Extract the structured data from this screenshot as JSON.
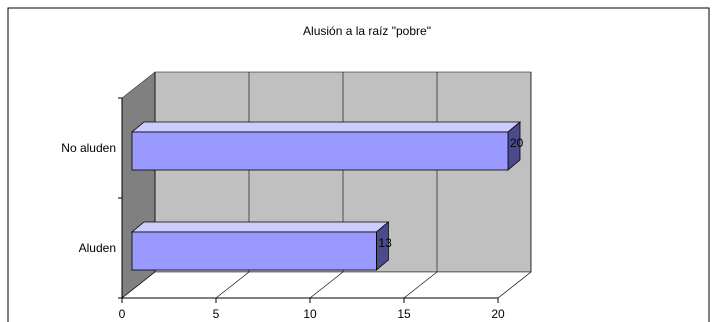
{
  "chart_data": {
    "type": "bar",
    "orientation": "horizontal",
    "style": "3d",
    "title": "Alusión a la raíz \"pobre\"",
    "categories": [
      "No aluden",
      "Aluden"
    ],
    "values": [
      20,
      13
    ],
    "xlim": [
      0,
      20
    ],
    "x_ticks": [
      0,
      5,
      10,
      15,
      20
    ],
    "data_labels": [
      "20",
      "13"
    ],
    "grid": true,
    "legend": "none",
    "colors": {
      "bar_front": "#9999ff",
      "bar_top": "#ccccff",
      "bar_side": "#4b4b8c",
      "back_wall": "#c0c0c0",
      "side_wall": "#808080",
      "floor": "#ffffff"
    }
  }
}
